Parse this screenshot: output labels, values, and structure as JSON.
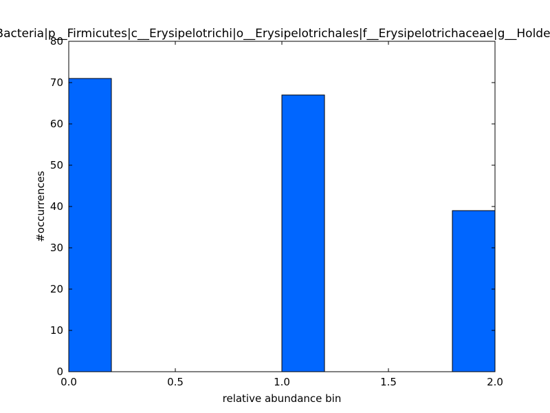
{
  "chart_data": {
    "type": "bar",
    "title": "k__Bacteria|p__Firmicutes|c__Erysipelotrichi|o__Erysipelotrichales|f__Erysipelotrichaceae|g__Holdemania",
    "xlabel": "relative abundance bin",
    "ylabel": "#occurrences",
    "xlim": [
      0.0,
      2.0
    ],
    "ylim": [
      0,
      80
    ],
    "xticks": [
      "0.0",
      "0.5",
      "1.0",
      "1.5",
      "2.0"
    ],
    "yticks": [
      "0",
      "10",
      "20",
      "30",
      "40",
      "50",
      "60",
      "70",
      "80"
    ],
    "bins": [
      {
        "x0": 0.0,
        "x1": 0.2,
        "value": 71
      },
      {
        "x0": 0.2,
        "x1": 0.4,
        "value": 0
      },
      {
        "x0": 0.4,
        "x1": 0.6,
        "value": 0
      },
      {
        "x0": 0.6,
        "x1": 0.8,
        "value": 0
      },
      {
        "x0": 0.8,
        "x1": 1.0,
        "value": 0
      },
      {
        "x0": 1.0,
        "x1": 1.2,
        "value": 67
      },
      {
        "x0": 1.2,
        "x1": 1.4,
        "value": 0
      },
      {
        "x0": 1.4,
        "x1": 1.6,
        "value": 0
      },
      {
        "x0": 1.6,
        "x1": 1.8,
        "value": 0
      },
      {
        "x0": 1.8,
        "x1": 2.0,
        "value": 39
      }
    ],
    "bar_color": "#0066ff",
    "grid": false
  }
}
